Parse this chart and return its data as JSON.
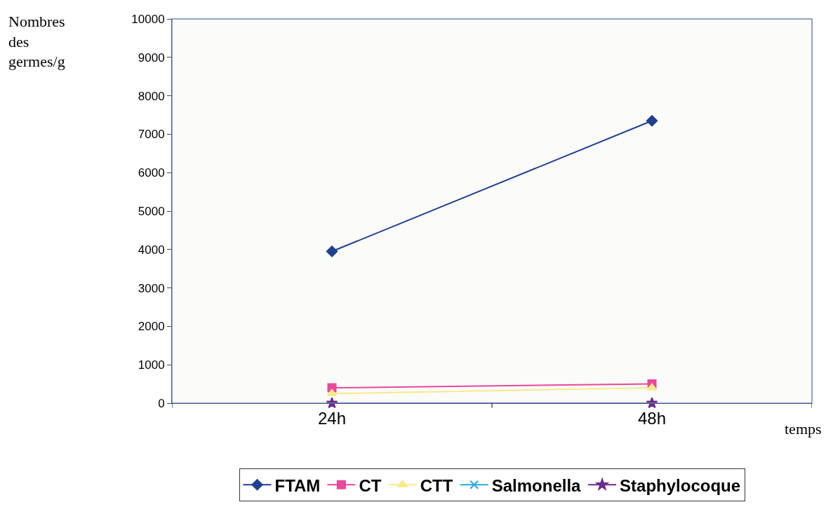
{
  "chart_data": {
    "type": "line",
    "xlabel": "temps",
    "ylabel": "Nombres des germes/g",
    "categories": [
      "24h",
      "48h"
    ],
    "ylim": [
      0,
      10000
    ],
    "yticks": [
      0,
      1000,
      2000,
      3000,
      4000,
      5000,
      6000,
      7000,
      8000,
      9000,
      10000
    ],
    "legend": "bottom",
    "series": [
      {
        "name": "FTAM",
        "color": "#1f3f8f",
        "marker": "diamond",
        "values": [
          3950,
          7350
        ]
      },
      {
        "name": "CT",
        "color": "#e8499a",
        "marker": "square",
        "values": [
          400,
          500
        ]
      },
      {
        "name": "CTT",
        "color": "#f5eb8c",
        "marker": "triangle",
        "values": [
          250,
          400
        ]
      },
      {
        "name": "Salmonella",
        "color": "#29a8e0",
        "marker": "cross",
        "values": [
          null,
          null
        ]
      },
      {
        "name": "Staphylocoque",
        "color": "#6a2a8a",
        "marker": "star",
        "values": [
          0,
          0
        ]
      }
    ]
  }
}
